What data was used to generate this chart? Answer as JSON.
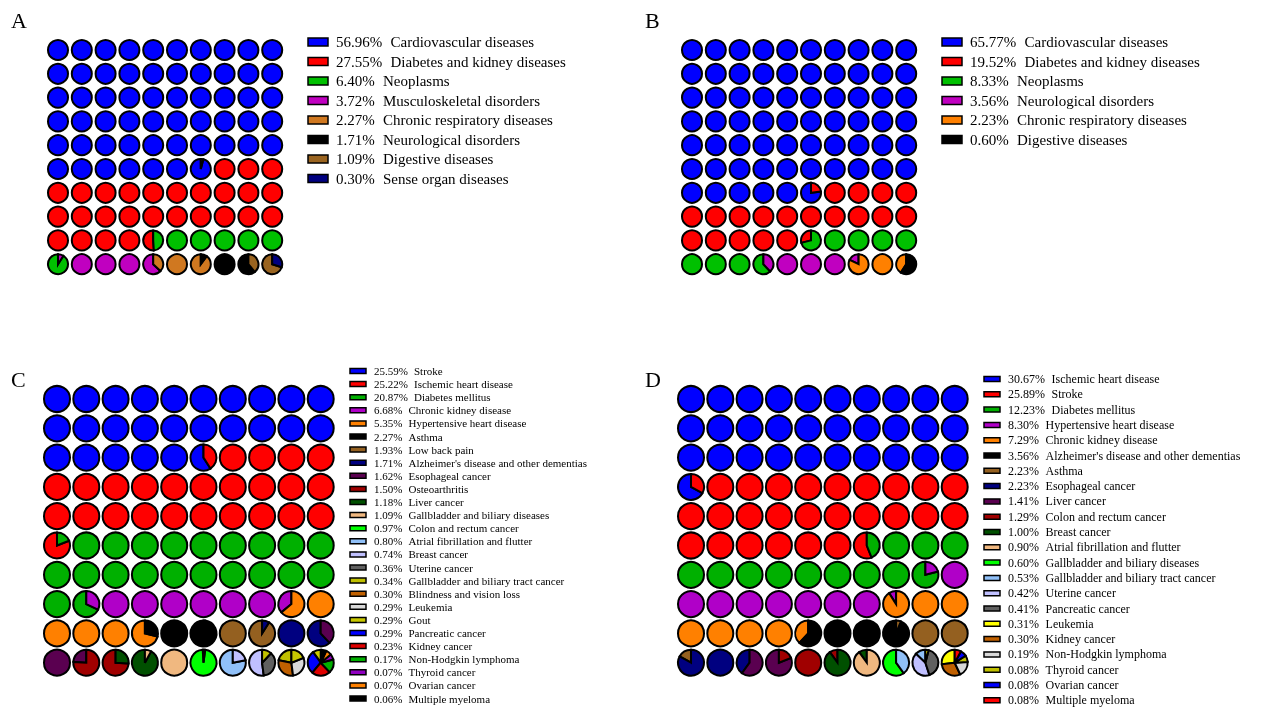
{
  "chart_data": [
    {
      "type": "other",
      "title": "A",
      "categories": [
        "Cardiovascular diseases",
        "Diabetes and kidney diseases",
        "Neoplasms",
        "Musculoskeletal disorders",
        "Chronic respiratory diseases",
        "Neurological disorders",
        "Digestive diseases",
        "Sense organ diseases"
      ],
      "values": [
        56.96,
        27.55,
        6.4,
        3.72,
        2.27,
        1.71,
        1.09,
        0.3
      ],
      "value_labels": [
        "56.96%",
        "27.55%",
        "6.40%",
        "3.72%",
        "2.27%",
        "1.71%",
        "1.09%",
        "0.30%"
      ],
      "colors": [
        "#0000ff",
        "#ff0000",
        "#00c000",
        "#c000c0",
        "#d07820",
        "#000000",
        "#9a6420",
        "#000080"
      ]
    },
    {
      "type": "other",
      "title": "B",
      "categories": [
        "Cardiovascular diseases",
        "Diabetes and kidney diseases",
        "Neoplasms",
        "Neurological disorders",
        "Chronic respiratory diseases",
        "Digestive diseases"
      ],
      "values": [
        65.77,
        19.52,
        8.33,
        3.56,
        2.23,
        0.6
      ],
      "value_labels": [
        "65.77%",
        "19.52%",
        "8.33%",
        "3.56%",
        "2.23%",
        "0.60%"
      ],
      "colors": [
        "#0000ff",
        "#ff0000",
        "#00c000",
        "#c000c0",
        "#ff8000",
        "#000000"
      ]
    },
    {
      "type": "other",
      "title": "C",
      "categories": [
        "Stroke",
        "Ischemic heart disease",
        "Diabetes mellitus",
        "Chronic kidney disease",
        "Hypertensive heart disease",
        "Asthma",
        "Low back pain",
        "Alzheimer's disease and other dementias",
        "Esophageal cancer",
        "Osteoarthritis",
        "Liver cancer",
        "Gallbladder and biliary diseases",
        "Colon and rectum cancer",
        "Atrial fibrillation and flutter",
        "Breast cancer",
        "Uterine cancer",
        "Gallbladder and biliary tract cancer",
        "Blindness and vision loss",
        "Leukemia",
        "Gout",
        "Pancreatic cancer",
        "Kidney cancer",
        "Non-Hodgkin lymphoma",
        "Thyroid cancer",
        "Ovarian cancer",
        "Multiple myeloma"
      ],
      "values": [
        25.59,
        25.22,
        20.87,
        6.68,
        5.35,
        2.27,
        1.93,
        1.71,
        1.62,
        1.5,
        1.18,
        1.09,
        0.97,
        0.8,
        0.74,
        0.36,
        0.34,
        0.3,
        0.29,
        0.29,
        0.29,
        0.23,
        0.17,
        0.07,
        0.07,
        0.06
      ],
      "value_labels": [
        "25.59%",
        "25.22%",
        "20.87%",
        "6.68%",
        "5.35%",
        "2.27%",
        "1.93%",
        "1.71%",
        "1.62%",
        "1.50%",
        "1.18%",
        "1.09%",
        "0.97%",
        "0.80%",
        "0.74%",
        "0.36%",
        "0.34%",
        "0.30%",
        "0.29%",
        "0.29%",
        "0.29%",
        "0.23%",
        "0.17%",
        "0.07%",
        "0.07%",
        "0.06%"
      ],
      "colors": [
        "#0000ff",
        "#ff0000",
        "#00b000",
        "#b000c8",
        "#ff8000",
        "#000000",
        "#946020",
        "#000080",
        "#5a0050",
        "#a00000",
        "#005000",
        "#f0b880",
        "#00ff00",
        "#90c0f8",
        "#c0c0ff",
        "#606060",
        "#c0c000",
        "#c06000",
        "#d8d8d8",
        "#c8c800",
        "#0000ff",
        "#e00000",
        "#00b000",
        "#9000c0",
        "#ff8000",
        "#000000"
      ]
    },
    {
      "type": "other",
      "title": "D",
      "categories": [
        "Ischemic heart disease",
        "Stroke",
        "Diabetes mellitus",
        "Hypertensive heart disease",
        "Chronic kidney disease",
        "Alzheimer's disease and other dementias",
        "Asthma",
        "Esophageal cancer",
        "Liver cancer",
        "Colon and rectum cancer",
        "Breast cancer",
        "Atrial fibrillation and flutter",
        "Gallbladder and biliary diseases",
        "Gallbladder and biliary tract cancer",
        "Uterine cancer",
        "Pancreatic cancer",
        "Leukemia",
        "Kidney cancer",
        "Non-Hodgkin lymphoma",
        "Thyroid cancer",
        "Ovarian cancer",
        "Multiple myeloma"
      ],
      "values": [
        30.67,
        25.89,
        12.23,
        8.3,
        7.29,
        3.56,
        2.23,
        2.23,
        1.41,
        1.29,
        1.0,
        0.9,
        0.6,
        0.53,
        0.42,
        0.41,
        0.31,
        0.3,
        0.19,
        0.08,
        0.08,
        0.08
      ],
      "value_labels": [
        "30.67%",
        "25.89%",
        "12.23%",
        "8.30%",
        "7.29%",
        "3.56%",
        "2.23%",
        "2.23%",
        "1.41%",
        "1.29%",
        "1.00%",
        "0.90%",
        "0.60%",
        "0.53%",
        "0.42%",
        "0.41%",
        "0.31%",
        "0.30%",
        "0.19%",
        "0.08%",
        "0.08%",
        "0.08%"
      ],
      "colors": [
        "#0000ff",
        "#ff0000",
        "#00b000",
        "#b000c8",
        "#ff8000",
        "#000000",
        "#946020",
        "#000080",
        "#5a0050",
        "#a00000",
        "#005000",
        "#f0b880",
        "#00ff00",
        "#90c0f8",
        "#c0c0ff",
        "#606060",
        "#ffff00",
        "#c06000",
        "#d8d8d8",
        "#c0c000",
        "#0000ff",
        "#ff0000"
      ]
    }
  ]
}
